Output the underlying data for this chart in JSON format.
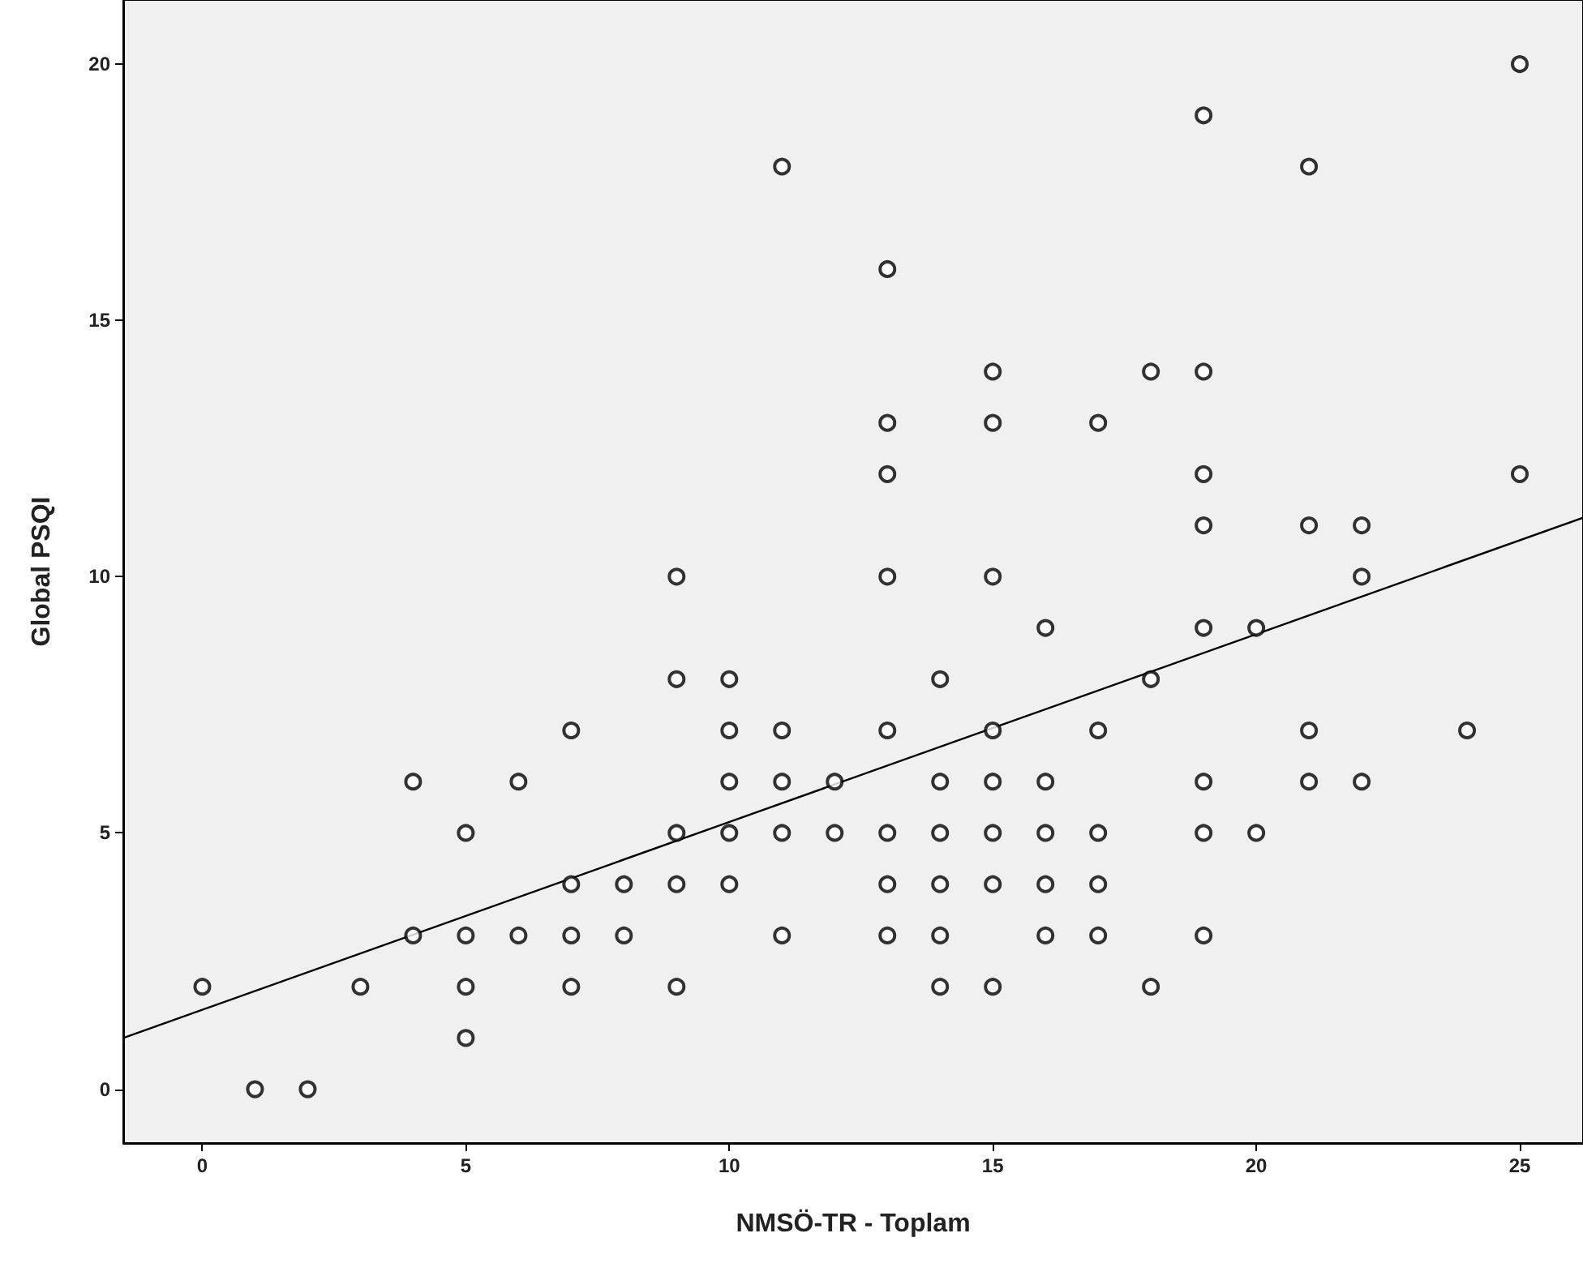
{
  "chart_data": {
    "type": "scatter",
    "xlabel": "NMSÖ-TR - Toplam",
    "ylabel": "Global PSQI",
    "xlim": [
      -1.5,
      26.2
    ],
    "ylim": [
      -1.05,
      21.25
    ],
    "xticks": [
      0,
      5,
      10,
      15,
      20,
      25
    ],
    "yticks": [
      0,
      5,
      10,
      15,
      20
    ],
    "grid": false,
    "marker": "circle",
    "series": [
      {
        "color": "#000000",
        "x": [
          0,
          1,
          2,
          3,
          4,
          4,
          5,
          5,
          5,
          5,
          6,
          6,
          7,
          7,
          7,
          7,
          8,
          8,
          9,
          9,
          9,
          9,
          9,
          10,
          10,
          10,
          10,
          10,
          11,
          11,
          11,
          11,
          11,
          12,
          12,
          13,
          13,
          13,
          13,
          13,
          13,
          13,
          13,
          14,
          14,
          14,
          14,
          14,
          14,
          15,
          15,
          15,
          15,
          15,
          15,
          15,
          15,
          16,
          16,
          16,
          16,
          16,
          17,
          17,
          17,
          17,
          17,
          18,
          18,
          18,
          19,
          19,
          19,
          19,
          19,
          19,
          19,
          19,
          20,
          20,
          21,
          21,
          21,
          21,
          22,
          22,
          22,
          24,
          25,
          25
        ],
        "values": [
          2,
          0,
          0,
          2,
          6,
          3,
          5,
          3,
          2,
          1,
          6,
          3,
          7,
          4,
          3,
          2,
          4,
          3,
          10,
          8,
          5,
          4,
          2,
          8,
          7,
          6,
          5,
          4,
          18,
          7,
          6,
          5,
          3,
          6,
          5,
          16,
          13,
          12,
          10,
          7,
          5,
          4,
          3,
          8,
          6,
          5,
          4,
          3,
          2,
          14,
          13,
          10,
          7,
          6,
          5,
          4,
          2,
          9,
          6,
          5,
          4,
          3,
          13,
          7,
          5,
          4,
          3,
          14,
          8,
          2,
          19,
          14,
          12,
          11,
          9,
          6,
          5,
          3,
          9,
          5,
          18,
          11,
          7,
          6,
          11,
          10,
          6,
          7,
          20,
          12
        ]
      },
      {
        "type": "line",
        "marker": "none",
        "color": "#000000",
        "x": [
          -1.5,
          26.2
        ],
        "values": [
          1.0,
          11.15
        ]
      }
    ]
  }
}
